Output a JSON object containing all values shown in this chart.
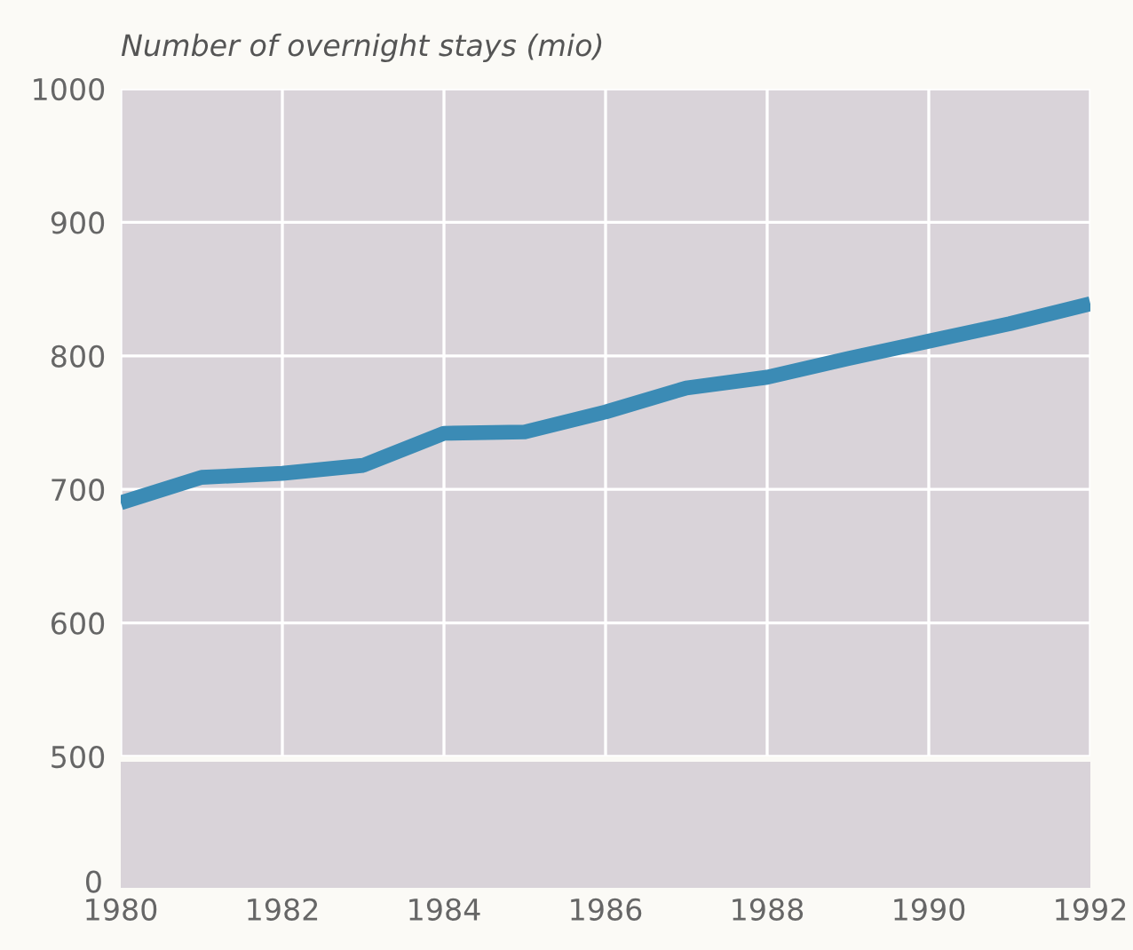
{
  "chart_data": {
    "type": "line",
    "ylabel": "Number of overnight stays (mio)",
    "x": [
      1980,
      1981,
      1982,
      1983,
      1984,
      1985,
      1986,
      1987,
      1988,
      1989,
      1990,
      1991,
      1992
    ],
    "series": [
      {
        "color": "#3b8bb5",
        "values": [
          690,
          709,
          712,
          718,
          742,
          743,
          758,
          776,
          784,
          798,
          811,
          824,
          839
        ]
      }
    ],
    "xlim": [
      1980,
      1992
    ],
    "xticks": [
      1980,
      1982,
      1984,
      1986,
      1988,
      1990,
      1992
    ],
    "ylim": [
      500,
      1000
    ],
    "yticks": [
      500,
      600,
      700,
      800,
      900,
      1000
    ],
    "annotations": [
      "0"
    ],
    "grid": true,
    "marker": "none",
    "line_style": "solid"
  }
}
